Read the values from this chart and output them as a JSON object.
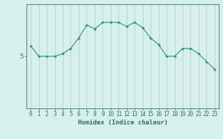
{
  "x": [
    0,
    1,
    2,
    3,
    4,
    5,
    6,
    7,
    8,
    9,
    10,
    11,
    12,
    13,
    14,
    15,
    16,
    17,
    18,
    19,
    20,
    21,
    22,
    23
  ],
  "y": [
    5.4,
    5.0,
    5.0,
    5.0,
    5.1,
    5.3,
    5.7,
    6.2,
    6.05,
    6.3,
    6.3,
    6.3,
    6.15,
    6.3,
    6.1,
    5.7,
    5.45,
    5.0,
    5.0,
    5.3,
    5.3,
    5.1,
    4.8,
    4.5
  ],
  "line_color": "#2d8b7a",
  "marker": "*",
  "marker_size": 3,
  "bg_color": "#d6f0ee",
  "grid_color": "#c0c0c0",
  "xlabel": "Humidex (Indice chaleur)",
  "xlim": [
    -0.5,
    23.5
  ],
  "ylim": [
    3.0,
    7.0
  ],
  "ytick_values": [
    5
  ],
  "ytick_labels": [
    "5"
  ],
  "xtick_values": [
    0,
    1,
    2,
    3,
    4,
    5,
    6,
    7,
    8,
    9,
    10,
    11,
    12,
    13,
    14,
    15,
    16,
    17,
    18,
    19,
    20,
    21,
    22,
    23
  ],
  "font_color": "#2d6b60",
  "xlabel_fontsize": 6.5,
  "tick_fontsize": 5.5
}
